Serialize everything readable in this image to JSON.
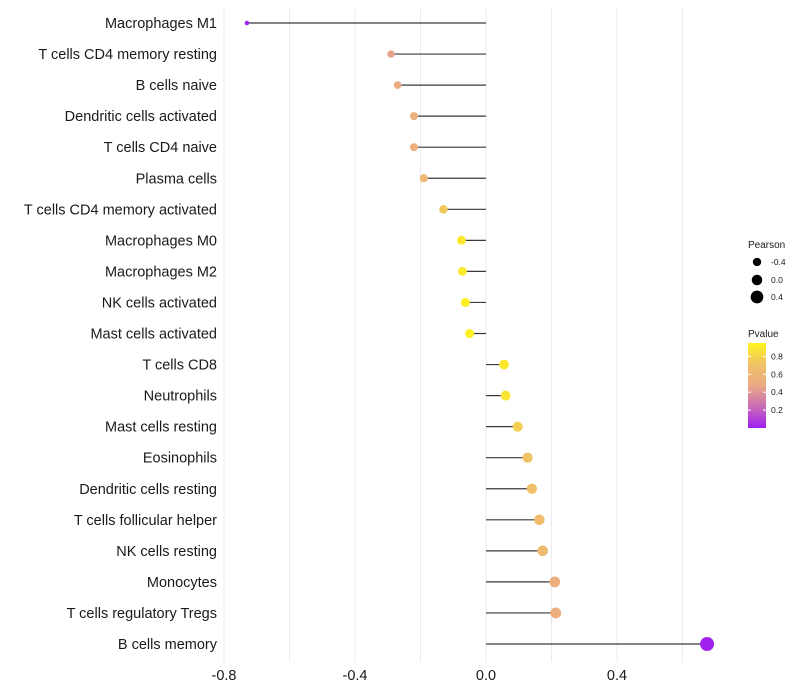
{
  "chart_data": {
    "type": "lollipop",
    "categories": [
      "Macrophages M1",
      "T cells CD4 memory resting",
      "B cells naive",
      "Dendritic cells activated",
      "T cells CD4 naive",
      "Plasma cells",
      "T cells CD4 memory activated",
      "Macrophages M0",
      "Macrophages M2",
      "NK cells activated",
      "Mast cells activated",
      "T cells CD8",
      "Neutrophils",
      "Mast cells resting",
      "Eosinophils",
      "Dendritic cells resting",
      "T cells follicular helper",
      "NK cells resting",
      "Monocytes",
      "T cells regulatory  Tregs",
      "B cells memory"
    ],
    "values": [
      -0.73,
      -0.29,
      -0.27,
      -0.22,
      -0.22,
      -0.19,
      -0.13,
      -0.075,
      -0.072,
      -0.063,
      -0.05,
      0.055,
      0.06,
      0.097,
      0.127,
      0.14,
      0.163,
      0.173,
      0.21,
      0.213,
      0.675
    ],
    "pvalues": [
      0.01,
      0.45,
      0.49,
      0.53,
      0.53,
      0.62,
      0.75,
      0.9,
      0.9,
      0.92,
      0.93,
      0.9,
      0.88,
      0.78,
      0.72,
      0.69,
      0.66,
      0.64,
      0.53,
      0.52,
      0.01
    ],
    "xlim": [
      -0.8,
      0.7
    ],
    "xticks": [
      -0.8,
      -0.4,
      0.0,
      0.4
    ],
    "xtick_labels": [
      "-0.8",
      "-0.4",
      "0.0",
      "0.4"
    ],
    "grid": true,
    "legend_size": {
      "title": "Pearson",
      "labels": [
        "-0.4",
        "0.0",
        "0.4"
      ],
      "values": [
        -0.4,
        0.0,
        0.4
      ]
    },
    "legend_color": {
      "title": "Pvalue",
      "labels": [
        "0.8",
        "0.6",
        "0.4",
        "0.2"
      ],
      "values": [
        0.8,
        0.6,
        0.4,
        0.2
      ],
      "range": [
        0.0,
        0.95
      ],
      "colors": [
        "#9f1ff2",
        "#c96bb6",
        "#eba985",
        "#f0c267",
        "#fff41d"
      ]
    },
    "stem_color": "#3a3a3a",
    "grid_color": "#ebebeb"
  }
}
